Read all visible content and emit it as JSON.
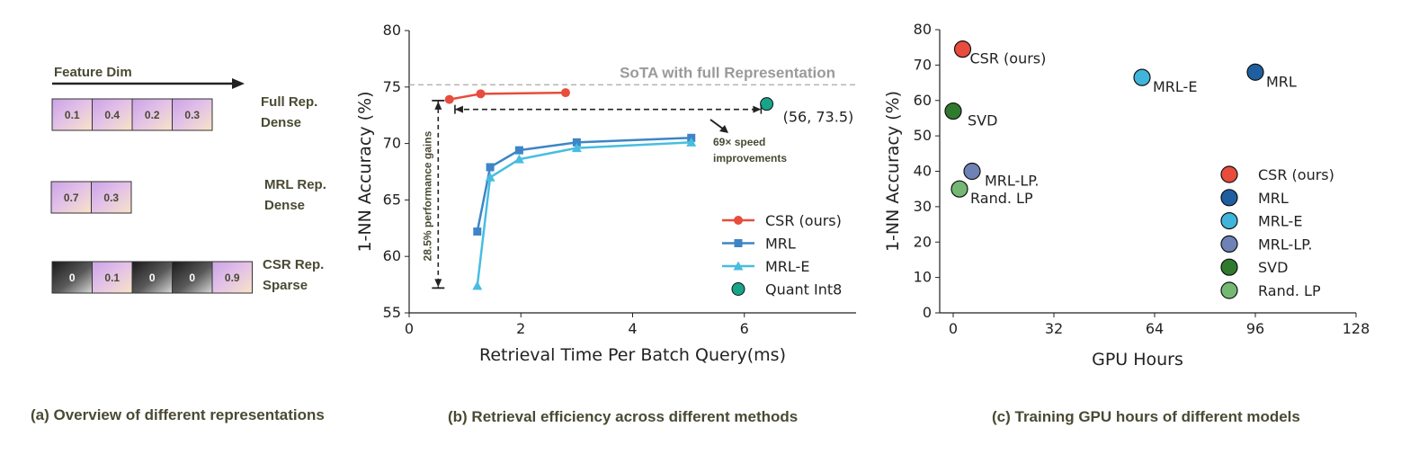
{
  "colors": {
    "csr": "#e74c3c",
    "mrl": "#3d85c6",
    "mrl_e": "#48bde0",
    "quant": "#17a589",
    "sota_line": "#b0b0b0",
    "brown": "#4a4a33"
  },
  "panel_a": {
    "caption": "(a) Overview of different representations",
    "feature_dim": "Feature Dim",
    "rows": [
      {
        "label_line1": "Full Rep.",
        "label_line2": "Dense",
        "cells": [
          {
            "value": "0.1",
            "style": "pink"
          },
          {
            "value": "0.4",
            "style": "pink"
          },
          {
            "value": "0.2",
            "style": "pink"
          },
          {
            "value": "0.3",
            "style": "pink"
          }
        ]
      },
      {
        "label_line1": "MRL Rep.",
        "label_line2": "Dense",
        "cells": [
          {
            "value": "0.7",
            "style": "pink"
          },
          {
            "value": "0.3",
            "style": "pink"
          }
        ]
      },
      {
        "label_line1": "CSR Rep.",
        "label_line2": "Sparse",
        "cells": [
          {
            "value": "0",
            "style": "dark"
          },
          {
            "value": "0.1",
            "style": "pink"
          },
          {
            "value": "0",
            "style": "dark"
          },
          {
            "value": "0",
            "style": "dark"
          },
          {
            "value": "0.9",
            "style": "pink"
          }
        ]
      }
    ]
  },
  "panel_b_text": {
    "caption": "(b) Retrieval efficiency across different methods",
    "sota_label": "SoTA with full Representation",
    "quant_point_label": "(56, 73.5)",
    "speed_line1": "69× speed",
    "speed_line2": "improvements",
    "gain_label": "28.5%  performance gains"
  },
  "panel_c_text": {
    "caption": "(c) Training GPU hours of different models"
  },
  "chart_data": [
    {
      "type": "line",
      "xlabel": "Retrieval Time Per Batch Query(ms)",
      "ylabel": "1-NN Accuracy (%)",
      "xlim": [
        0,
        8
      ],
      "ylim": [
        55,
        80
      ],
      "xticks": [
        0,
        2,
        4,
        6
      ],
      "yticks": [
        55,
        60,
        65,
        70,
        75,
        80
      ],
      "grid": false,
      "legend_position": "lower-right",
      "reference_line": {
        "label": "SoTA with full Representation",
        "y": 75.2
      },
      "series": [
        {
          "name": "CSR (ours)",
          "marker": "circle",
          "color": "#e74c3c",
          "points": [
            [
              0.72,
              73.9
            ],
            [
              1.28,
              74.4
            ],
            [
              2.8,
              74.5
            ]
          ]
        },
        {
          "name": "MRL",
          "marker": "square",
          "color": "#3d85c6",
          "points": [
            [
              1.22,
              62.2
            ],
            [
              1.45,
              67.9
            ],
            [
              1.97,
              69.4
            ],
            [
              3.0,
              70.1
            ],
            [
              5.05,
              70.5
            ]
          ]
        },
        {
          "name": "MRL-E",
          "marker": "triangle",
          "color": "#48bde0",
          "points": [
            [
              1.22,
              57.4
            ],
            [
              1.45,
              67.0
            ],
            [
              1.97,
              68.6
            ],
            [
              3.0,
              69.6
            ],
            [
              5.05,
              70.1
            ]
          ]
        },
        {
          "name": "Quant Int8",
          "marker": "circle",
          "color": "#17a589",
          "points": [
            [
              6.4,
              73.5
            ]
          ]
        }
      ]
    },
    {
      "type": "scatter",
      "xlabel": "GPU Hours",
      "ylabel": "1-NN Accuracy (%)",
      "xlim": [
        0,
        128
      ],
      "ylim": [
        0,
        80
      ],
      "xticks": [
        0,
        32,
        64,
        96,
        128
      ],
      "yticks": [
        0,
        10,
        20,
        30,
        40,
        50,
        60,
        70,
        80
      ],
      "grid": false,
      "legend_position": "lower-right",
      "points": [
        {
          "name": "CSR (ours)",
          "x": 3,
          "y": 74.5,
          "color": "#e74c3c",
          "label_dx": 8,
          "label_dy": 16
        },
        {
          "name": "MRL",
          "x": 96,
          "y": 68,
          "color": "#1f5fa0",
          "label_dx": 12,
          "label_dy": 16
        },
        {
          "name": "MRL-E",
          "x": 60,
          "y": 66.5,
          "color": "#3fb5dc",
          "label_dx": 12,
          "label_dy": 16
        },
        {
          "name": "MRL-LP.",
          "x": 6,
          "y": 40,
          "color": "#6f82b5",
          "label_dx": 14,
          "label_dy": 16
        },
        {
          "name": "SVD",
          "x": 0,
          "y": 57,
          "color": "#2f7a2f",
          "label_dx": 16,
          "label_dy": 16
        },
        {
          "name": "Rand. LP",
          "x": 2,
          "y": 35,
          "color": "#74b874",
          "label_dx": 12,
          "label_dy": 16
        }
      ]
    }
  ]
}
